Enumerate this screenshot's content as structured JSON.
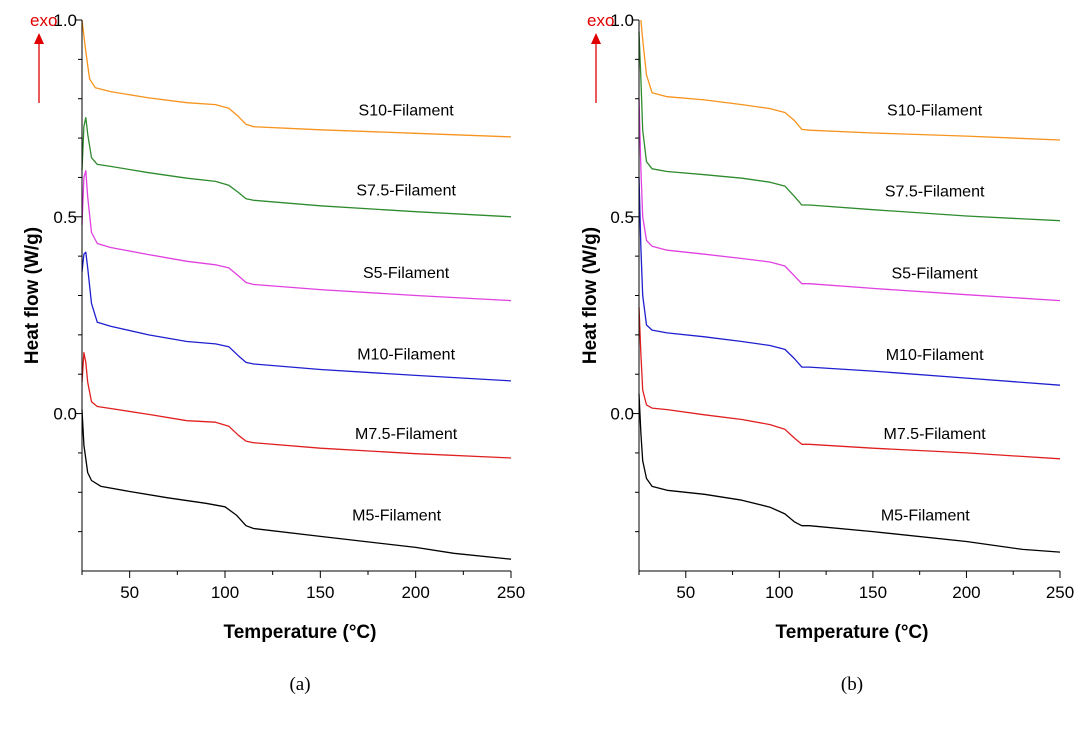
{
  "chart_data": [
    {
      "type": "line",
      "panel_label": "(a)",
      "xlabel": "Temperature (°C)",
      "ylabel": "Heat flow (W/g)",
      "indicator": "exo",
      "xlim": [
        25,
        250
      ],
      "ylim": [
        -0.4,
        1.0
      ],
      "xticks": [
        50,
        100,
        150,
        200,
        250
      ],
      "yticks": [
        0.0,
        0.5,
        1.0
      ],
      "grid": false,
      "series": [
        {
          "name": "S10-Filament",
          "color": "#f7931e",
          "label_pos": [
            195,
            0.757
          ],
          "points": [
            [
              25,
              1.0
            ],
            [
              27,
              0.92
            ],
            [
              29,
              0.85
            ],
            [
              32,
              0.828
            ],
            [
              40,
              0.818
            ],
            [
              60,
              0.802
            ],
            [
              80,
              0.79
            ],
            [
              95,
              0.785
            ],
            [
              102,
              0.776
            ],
            [
              107,
              0.755
            ],
            [
              111,
              0.735
            ],
            [
              115,
              0.729
            ],
            [
              150,
              0.721
            ],
            [
              200,
              0.712
            ],
            [
              250,
              0.703
            ]
          ]
        },
        {
          "name": "S7.5-Filament",
          "color": "#2e8b2e",
          "label_pos": [
            195,
            0.554
          ],
          "points": [
            [
              25,
              0.62
            ],
            [
              26,
              0.73
            ],
            [
              27,
              0.752
            ],
            [
              28,
              0.71
            ],
            [
              30,
              0.65
            ],
            [
              33,
              0.633
            ],
            [
              40,
              0.628
            ],
            [
              60,
              0.612
            ],
            [
              80,
              0.598
            ],
            [
              95,
              0.59
            ],
            [
              102,
              0.58
            ],
            [
              107,
              0.562
            ],
            [
              111,
              0.546
            ],
            [
              115,
              0.542
            ],
            [
              150,
              0.528
            ],
            [
              200,
              0.513
            ],
            [
              250,
              0.5
            ]
          ]
        },
        {
          "name": "S5-Filament",
          "color": "#e040e0",
          "label_pos": [
            195,
            0.345
          ],
          "points": [
            [
              25,
              0.48
            ],
            [
              26,
              0.6
            ],
            [
              27,
              0.617
            ],
            [
              28,
              0.55
            ],
            [
              30,
              0.46
            ],
            [
              33,
              0.432
            ],
            [
              40,
              0.422
            ],
            [
              60,
              0.404
            ],
            [
              80,
              0.387
            ],
            [
              95,
              0.378
            ],
            [
              102,
              0.37
            ],
            [
              107,
              0.35
            ],
            [
              111,
              0.333
            ],
            [
              115,
              0.328
            ],
            [
              150,
              0.315
            ],
            [
              200,
              0.3
            ],
            [
              250,
              0.287
            ]
          ]
        },
        {
          "name": "M10-Filament",
          "color": "#1f1fcf",
          "label_pos": [
            195,
            0.137
          ],
          "points": [
            [
              25,
              0.36
            ],
            [
              26,
              0.405
            ],
            [
              27,
              0.41
            ],
            [
              28,
              0.37
            ],
            [
              30,
              0.28
            ],
            [
              33,
              0.232
            ],
            [
              40,
              0.222
            ],
            [
              60,
              0.2
            ],
            [
              80,
              0.183
            ],
            [
              95,
              0.177
            ],
            [
              102,
              0.17
            ],
            [
              107,
              0.147
            ],
            [
              111,
              0.13
            ],
            [
              115,
              0.126
            ],
            [
              150,
              0.112
            ],
            [
              200,
              0.097
            ],
            [
              250,
              0.083
            ]
          ]
        },
        {
          "name": "M7.5-Filament",
          "color": "#e02020",
          "label_pos": [
            195,
            -0.065
          ],
          "points": [
            [
              25,
              0.08
            ],
            [
              26,
              0.155
            ],
            [
              27,
              0.13
            ],
            [
              28,
              0.08
            ],
            [
              30,
              0.03
            ],
            [
              33,
              0.018
            ],
            [
              40,
              0.013
            ],
            [
              60,
              -0.002
            ],
            [
              80,
              -0.018
            ],
            [
              95,
              -0.022
            ],
            [
              102,
              -0.032
            ],
            [
              107,
              -0.055
            ],
            [
              111,
              -0.07
            ],
            [
              115,
              -0.074
            ],
            [
              150,
              -0.088
            ],
            [
              200,
              -0.102
            ],
            [
              250,
              -0.113
            ]
          ]
        },
        {
          "name": "M5-Filament",
          "color": "#000000",
          "label_pos": [
            190,
            -0.272
          ],
          "points": [
            [
              25,
              0.01
            ],
            [
              26,
              -0.08
            ],
            [
              28,
              -0.15
            ],
            [
              30,
              -0.17
            ],
            [
              35,
              -0.185
            ],
            [
              50,
              -0.198
            ],
            [
              70,
              -0.214
            ],
            [
              90,
              -0.228
            ],
            [
              100,
              -0.237
            ],
            [
              106,
              -0.258
            ],
            [
              111,
              -0.285
            ],
            [
              115,
              -0.292
            ],
            [
              150,
              -0.312
            ],
            [
              200,
              -0.34
            ],
            [
              220,
              -0.355
            ],
            [
              250,
              -0.37
            ]
          ]
        }
      ]
    },
    {
      "type": "line",
      "panel_label": "(b)",
      "xlabel": "Temperature (°C)",
      "ylabel": "Heat flow (W/g)",
      "indicator": "exo",
      "xlim": [
        25,
        250
      ],
      "ylim": [
        -0.4,
        1.0
      ],
      "xticks": [
        50,
        100,
        150,
        200,
        250
      ],
      "yticks": [
        0.0,
        0.5,
        1.0
      ],
      "grid": false,
      "series": [
        {
          "name": "S10-Filament",
          "color": "#f7931e",
          "label_pos": [
            183,
            0.757
          ],
          "points": [
            [
              26,
              1.0
            ],
            [
              27,
              0.95
            ],
            [
              29,
              0.86
            ],
            [
              32,
              0.815
            ],
            [
              40,
              0.805
            ],
            [
              60,
              0.797
            ],
            [
              80,
              0.785
            ],
            [
              95,
              0.775
            ],
            [
              103,
              0.765
            ],
            [
              108,
              0.745
            ],
            [
              112,
              0.722
            ],
            [
              116,
              0.72
            ],
            [
              150,
              0.713
            ],
            [
              200,
              0.705
            ],
            [
              250,
              0.695
            ]
          ]
        },
        {
          "name": "S7.5-Filament",
          "color": "#2e8b2e",
          "label_pos": [
            183,
            0.552
          ],
          "points": [
            [
              25,
              0.97
            ],
            [
              26,
              0.85
            ],
            [
              27,
              0.72
            ],
            [
              29,
              0.64
            ],
            [
              32,
              0.622
            ],
            [
              40,
              0.615
            ],
            [
              60,
              0.607
            ],
            [
              80,
              0.598
            ],
            [
              95,
              0.588
            ],
            [
              103,
              0.578
            ],
            [
              108,
              0.552
            ],
            [
              112,
              0.53
            ],
            [
              116,
              0.53
            ],
            [
              150,
              0.518
            ],
            [
              200,
              0.502
            ],
            [
              250,
              0.49
            ]
          ]
        },
        {
          "name": "S5-Filament",
          "color": "#e040e0",
          "label_pos": [
            183,
            0.343
          ],
          "points": [
            [
              25,
              0.8
            ],
            [
              26,
              0.62
            ],
            [
              27,
              0.5
            ],
            [
              29,
              0.44
            ],
            [
              32,
              0.425
            ],
            [
              40,
              0.415
            ],
            [
              60,
              0.405
            ],
            [
              80,
              0.394
            ],
            [
              95,
              0.385
            ],
            [
              103,
              0.375
            ],
            [
              108,
              0.35
            ],
            [
              112,
              0.33
            ],
            [
              116,
              0.33
            ],
            [
              150,
              0.318
            ],
            [
              200,
              0.302
            ],
            [
              250,
              0.287
            ]
          ]
        },
        {
          "name": "M10-Filament",
          "color": "#1f1fcf",
          "label_pos": [
            183,
            0.136
          ],
          "points": [
            [
              25,
              0.6
            ],
            [
              26,
              0.42
            ],
            [
              27,
              0.3
            ],
            [
              29,
              0.225
            ],
            [
              32,
              0.212
            ],
            [
              40,
              0.205
            ],
            [
              60,
              0.195
            ],
            [
              80,
              0.183
            ],
            [
              95,
              0.173
            ],
            [
              103,
              0.163
            ],
            [
              108,
              0.14
            ],
            [
              112,
              0.118
            ],
            [
              116,
              0.118
            ],
            [
              150,
              0.108
            ],
            [
              200,
              0.09
            ],
            [
              250,
              0.072
            ]
          ]
        },
        {
          "name": "M7.5-Filament",
          "color": "#e02020",
          "label_pos": [
            183,
            -0.064
          ],
          "points": [
            [
              25,
              0.27
            ],
            [
              26,
              0.15
            ],
            [
              27,
              0.06
            ],
            [
              29,
              0.022
            ],
            [
              32,
              0.014
            ],
            [
              40,
              0.01
            ],
            [
              60,
              -0.003
            ],
            [
              80,
              -0.015
            ],
            [
              95,
              -0.028
            ],
            [
              103,
              -0.04
            ],
            [
              108,
              -0.062
            ],
            [
              112,
              -0.078
            ],
            [
              116,
              -0.078
            ],
            [
              150,
              -0.088
            ],
            [
              200,
              -0.1
            ],
            [
              250,
              -0.115
            ]
          ]
        },
        {
          "name": "M5-Filament",
          "color": "#000000",
          "label_pos": [
            178,
            -0.272
          ],
          "points": [
            [
              25,
              0.05
            ],
            [
              26,
              -0.05
            ],
            [
              27,
              -0.12
            ],
            [
              29,
              -0.165
            ],
            [
              32,
              -0.185
            ],
            [
              40,
              -0.195
            ],
            [
              60,
              -0.205
            ],
            [
              80,
              -0.22
            ],
            [
              95,
              -0.238
            ],
            [
              103,
              -0.255
            ],
            [
              108,
              -0.275
            ],
            [
              112,
              -0.285
            ],
            [
              116,
              -0.285
            ],
            [
              150,
              -0.3
            ],
            [
              200,
              -0.325
            ],
            [
              230,
              -0.345
            ],
            [
              250,
              -0.352
            ]
          ]
        }
      ]
    }
  ]
}
